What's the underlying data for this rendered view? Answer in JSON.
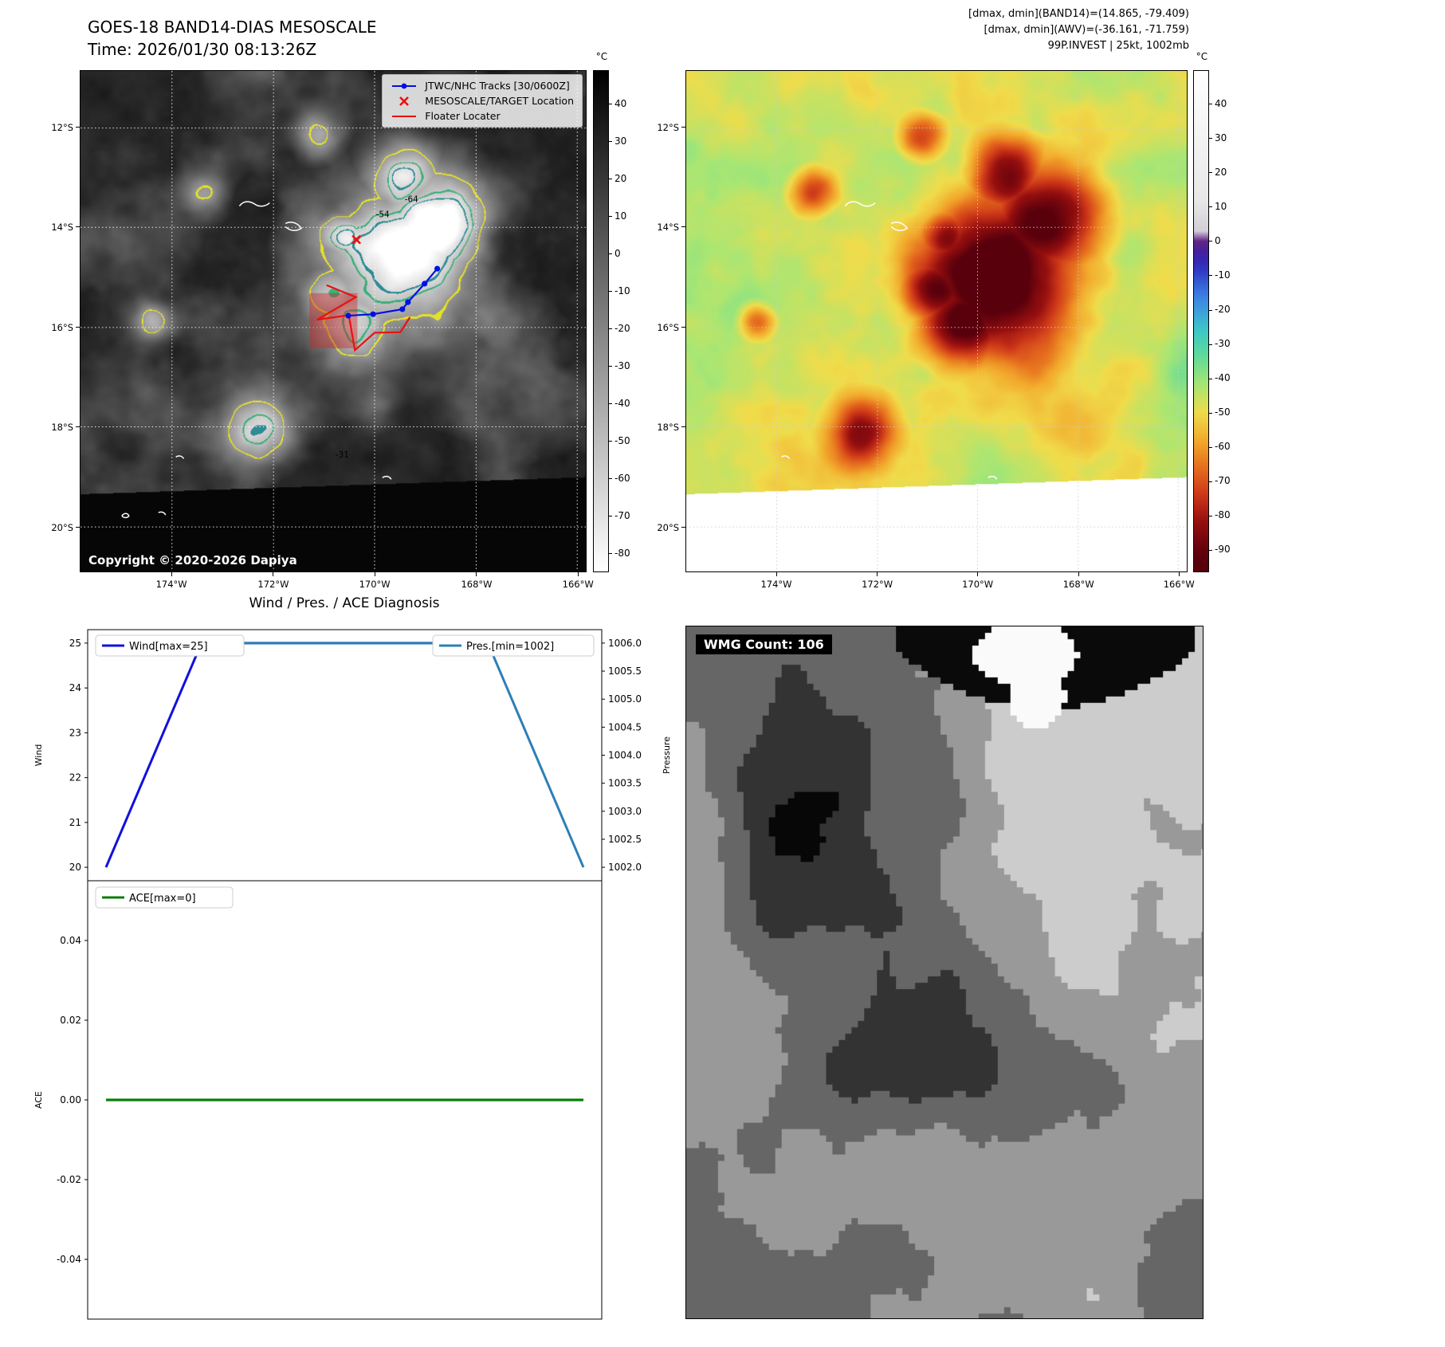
{
  "band14": {
    "title": "GOES-18 BAND14-DIAS MESOSCALE",
    "time": "Time: 2026/01/30 08:13:26Z",
    "copyright": "Copyright © 2020-2026 Dapiya",
    "legend": [
      {
        "label": "JTWC/NHC Tracks [30/0600Z]",
        "marker": "line-dots",
        "color": "#0010e0"
      },
      {
        "label": "MESOSCALE/TARGET Location",
        "marker": "x",
        "color": "#e81111"
      },
      {
        "label": "Floater Locater",
        "marker": "line",
        "color": "#e81111"
      }
    ],
    "colorbar": {
      "unit": "°C",
      "ticks": [
        "40",
        "30",
        "20",
        "10",
        "0",
        "-10",
        "-20",
        "-30",
        "-40",
        "-50",
        "-60",
        "-70",
        "-80"
      ]
    },
    "contour_labels": [
      {
        "text": "-64",
        "fx": 0.655,
        "fy": 0.262
      },
      {
        "text": "-54",
        "fx": 0.598,
        "fy": 0.292
      },
      {
        "text": "-31",
        "fx": 0.518,
        "fy": 0.772
      }
    ],
    "overlays": {
      "track_color": "#0010e0",
      "floater_color": "#e81111",
      "track": [
        [
          0.53,
          0.489
        ],
        [
          0.579,
          0.486
        ],
        [
          0.637,
          0.476
        ],
        [
          0.648,
          0.462
        ],
        [
          0.681,
          0.425
        ],
        [
          0.706,
          0.395
        ]
      ],
      "target": [
        0.546,
        0.337
      ],
      "floater": [
        [
          0.487,
          0.428
        ],
        [
          0.545,
          0.452
        ],
        [
          0.468,
          0.497
        ],
        [
          0.531,
          0.488
        ],
        [
          0.543,
          0.558
        ],
        [
          0.582,
          0.523
        ],
        [
          0.633,
          0.522
        ],
        [
          0.652,
          0.492
        ]
      ],
      "alert_box": [
        0.453,
        0.444,
        0.095,
        0.11
      ]
    }
  },
  "awv": {
    "header": [
      "[dmax, dmin](BAND14)=(14.865, -79.409)",
      "[dmax, dmin](AWV)=(-36.161, -71.759)",
      "99P.INVEST | 25kt, 1002mb"
    ],
    "colorbar": {
      "unit": "°C",
      "ticks": [
        "40",
        "30",
        "20",
        "10",
        "0",
        "-10",
        "-20",
        "-30",
        "-40",
        "-50",
        "-60",
        "-70",
        "-80",
        "-90"
      ]
    }
  },
  "geo": {
    "lat_labels": [
      "12°S",
      "14°S",
      "16°S",
      "18°S",
      "20°S"
    ],
    "lon_labels": [
      "174°W",
      "172°W",
      "170°W",
      "168°W",
      "166°W"
    ],
    "lat_f": [
      0.114,
      0.3125,
      0.5125,
      0.711,
      0.911
    ],
    "lon_f": [
      0.181,
      0.382,
      0.582,
      0.783,
      0.983
    ]
  },
  "wmg": {
    "label": "WMG Count: 106"
  },
  "chart_data": [
    {
      "type": "line",
      "title": "Wind / Pres. / ACE Diagnosis",
      "x": [
        0,
        1,
        2,
        3,
        4,
        5
      ],
      "series": [
        {
          "name": "Wind[max=25]",
          "yaxis": "left",
          "color": "#1010dd",
          "values": [
            20,
            25,
            25,
            25,
            25,
            25
          ]
        },
        {
          "name": "Pres.[min=1002]",
          "yaxis": "right",
          "color": "#2d7fb5",
          "values": [
            1006,
            1006,
            1006,
            1006,
            1006,
            1002
          ]
        }
      ],
      "ylabel_left": "Wind",
      "ylabel_right": "Pressure",
      "ylim_left": [
        19.7,
        25.3
      ],
      "ylim_right": [
        1001.76,
        1006.24
      ],
      "yticks_left": [
        "25",
        "24",
        "23",
        "22",
        "21",
        "20"
      ],
      "yticks_right": [
        "1006.0",
        "1005.5",
        "1005.0",
        "1004.5",
        "1004.0",
        "1003.5",
        "1003.0",
        "1002.5",
        "1002.0"
      ],
      "grid": false,
      "legend_position": "inside-top"
    },
    {
      "type": "line",
      "x": [
        0,
        1,
        2,
        3,
        4,
        5
      ],
      "series": [
        {
          "name": "ACE[max=0]",
          "color": "#0b7d0b",
          "values": [
            0,
            0,
            0,
            0,
            0,
            0
          ]
        }
      ],
      "ylabel": "ACE",
      "ylim": [
        -0.055,
        0.055
      ],
      "yticks": [
        "0.04",
        "0.02",
        "0.00",
        "-0.02",
        "-0.04"
      ],
      "ytick_values": [
        0.04,
        0.02,
        0.0,
        -0.02,
        -0.04
      ],
      "grid": false,
      "legend_position": "inside-top-left"
    }
  ]
}
